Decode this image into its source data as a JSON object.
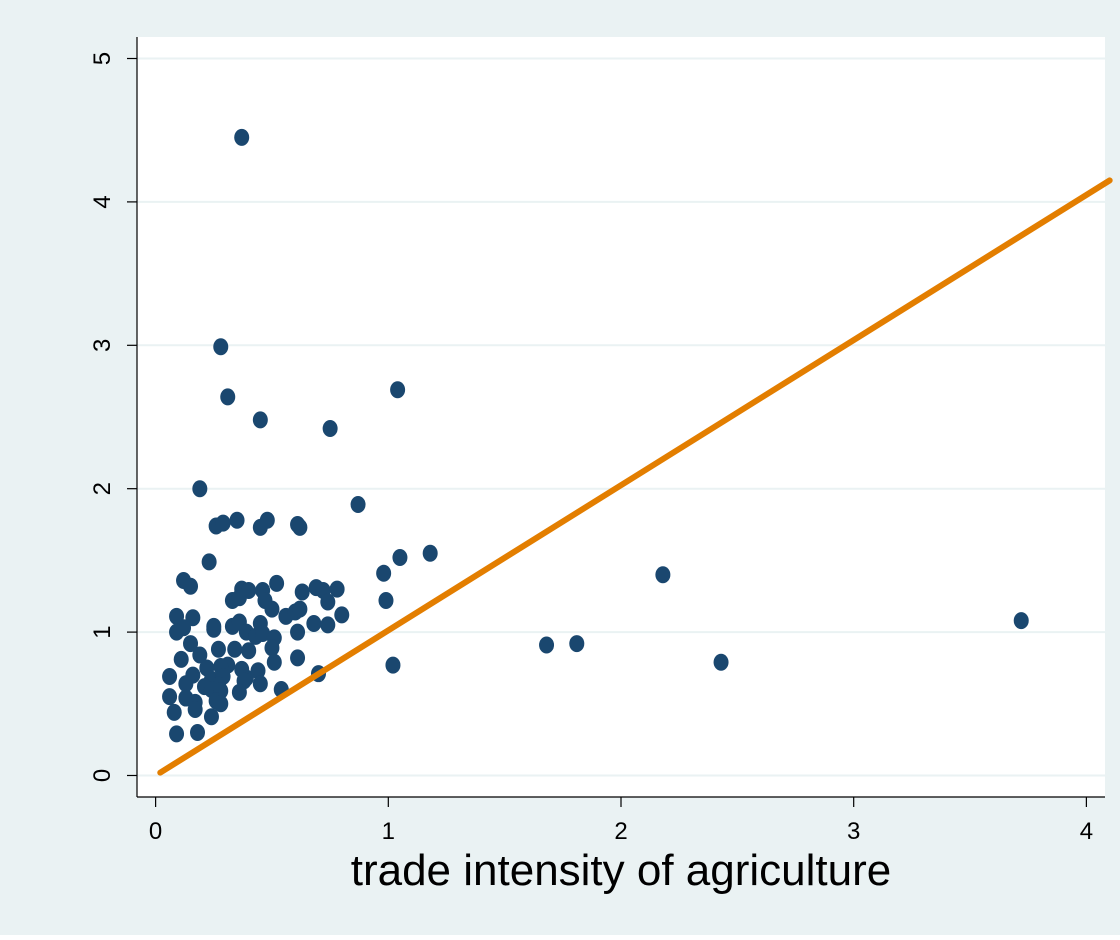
{
  "chart_data": {
    "type": "scatter",
    "title": "",
    "xlabel": "trade intensity of agriculture",
    "ylabel": "",
    "xlim": [
      -0.08,
      4.08
    ],
    "ylim": [
      -0.15,
      5.15
    ],
    "xticks": [
      0,
      1,
      2,
      3,
      4
    ],
    "yticks": [
      0,
      1,
      2,
      3,
      4,
      5
    ],
    "grid": "horizontal",
    "colors": {
      "background": "#eaf2f3",
      "plot_area": "#ffffff",
      "grid": "#eaf2f3",
      "marker": "#1a476f",
      "line": "#e37e00"
    },
    "reference_line": {
      "x": [
        0.02,
        4.1
      ],
      "y": [
        0.02,
        4.15
      ]
    },
    "series": [
      {
        "points": [
          [
            0.37,
            4.45
          ],
          [
            0.28,
            2.99
          ],
          [
            0.31,
            2.64
          ],
          [
            1.04,
            2.69
          ],
          [
            0.45,
            2.48
          ],
          [
            0.75,
            2.42
          ],
          [
            0.19,
            2.0
          ],
          [
            0.87,
            1.89
          ],
          [
            0.26,
            1.74
          ],
          [
            0.29,
            1.76
          ],
          [
            0.35,
            1.78
          ],
          [
            0.45,
            1.73
          ],
          [
            0.48,
            1.78
          ],
          [
            0.61,
            1.75
          ],
          [
            0.62,
            1.73
          ],
          [
            0.23,
            1.49
          ],
          [
            1.18,
            1.55
          ],
          [
            1.05,
            1.52
          ],
          [
            0.98,
            1.41
          ],
          [
            0.99,
            1.22
          ],
          [
            0.12,
            1.36
          ],
          [
            0.15,
            1.32
          ],
          [
            0.37,
            1.3
          ],
          [
            0.4,
            1.29
          ],
          [
            0.46,
            1.29
          ],
          [
            0.52,
            1.34
          ],
          [
            0.69,
            1.31
          ],
          [
            0.72,
            1.29
          ],
          [
            0.78,
            1.3
          ],
          [
            0.74,
            1.21
          ],
          [
            0.63,
            1.28
          ],
          [
            0.33,
            1.22
          ],
          [
            0.36,
            1.24
          ],
          [
            0.47,
            1.22
          ],
          [
            0.5,
            1.16
          ],
          [
            0.56,
            1.11
          ],
          [
            0.6,
            1.14
          ],
          [
            0.62,
            1.16
          ],
          [
            0.8,
            1.12
          ],
          [
            0.09,
            1.11
          ],
          [
            0.16,
            1.1
          ],
          [
            0.12,
            1.03
          ],
          [
            0.25,
            1.02
          ],
          [
            0.25,
            1.04
          ],
          [
            0.33,
            1.04
          ],
          [
            0.36,
            1.07
          ],
          [
            0.45,
            1.06
          ],
          [
            0.68,
            1.06
          ],
          [
            0.74,
            1.05
          ],
          [
            0.09,
            1.0
          ],
          [
            0.61,
            1.0
          ],
          [
            0.39,
            1.0
          ],
          [
            0.43,
            0.97
          ],
          [
            0.46,
            0.99
          ],
          [
            0.51,
            0.96
          ],
          [
            0.15,
            0.92
          ],
          [
            0.27,
            0.88
          ],
          [
            0.34,
            0.88
          ],
          [
            0.4,
            0.87
          ],
          [
            0.5,
            0.89
          ],
          [
            0.19,
            0.84
          ],
          [
            0.11,
            0.81
          ],
          [
            0.61,
            0.82
          ],
          [
            0.51,
            0.79
          ],
          [
            0.31,
            0.77
          ],
          [
            0.22,
            0.75
          ],
          [
            0.28,
            0.76
          ],
          [
            0.37,
            0.74
          ],
          [
            0.44,
            0.73
          ],
          [
            1.02,
            0.77
          ],
          [
            0.7,
            0.71
          ],
          [
            0.06,
            0.69
          ],
          [
            0.16,
            0.7
          ],
          [
            0.24,
            0.67
          ],
          [
            0.29,
            0.69
          ],
          [
            0.39,
            0.68
          ],
          [
            0.13,
            0.64
          ],
          [
            0.21,
            0.62
          ],
          [
            0.27,
            0.63
          ],
          [
            0.38,
            0.66
          ],
          [
            0.45,
            0.64
          ],
          [
            0.54,
            0.6
          ],
          [
            0.24,
            0.6
          ],
          [
            0.28,
            0.59
          ],
          [
            0.36,
            0.58
          ],
          [
            0.06,
            0.55
          ],
          [
            0.13,
            0.54
          ],
          [
            0.17,
            0.51
          ],
          [
            0.26,
            0.52
          ],
          [
            0.28,
            0.5
          ],
          [
            0.08,
            0.44
          ],
          [
            0.17,
            0.46
          ],
          [
            0.24,
            0.41
          ],
          [
            0.09,
            0.29
          ],
          [
            0.18,
            0.3
          ],
          [
            1.68,
            0.91
          ],
          [
            1.81,
            0.92
          ],
          [
            2.18,
            1.4
          ],
          [
            2.43,
            0.79
          ],
          [
            3.72,
            1.08
          ]
        ]
      }
    ]
  }
}
